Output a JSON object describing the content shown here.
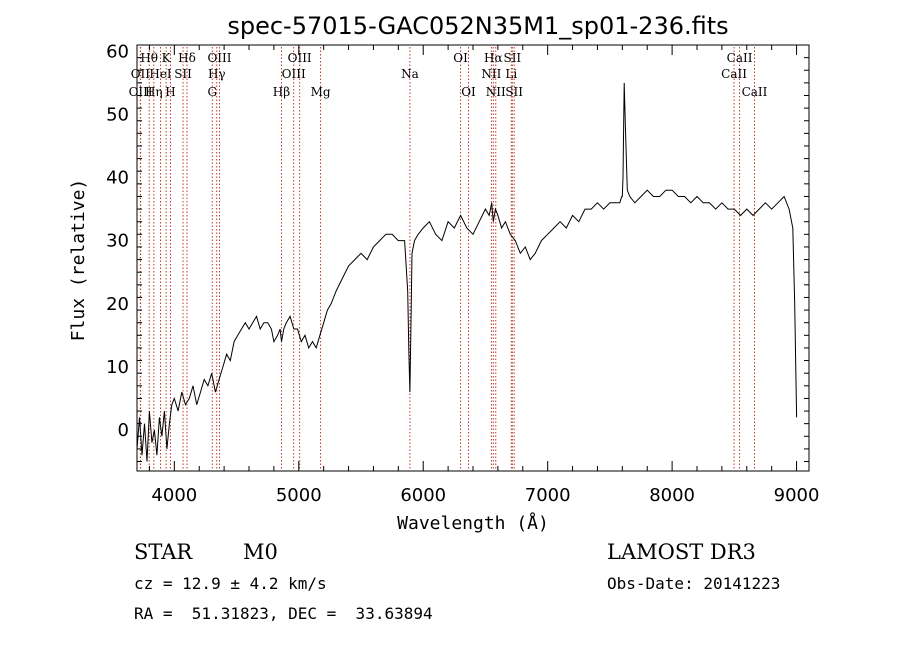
{
  "chart_data": {
    "type": "line",
    "title": "spec-57015-GAC052N35M1_sp01-236.fits",
    "xlabel": "Wavelength (Å)",
    "ylabel": "Flux (relative)",
    "xlim": [
      3700,
      9100
    ],
    "ylim": [
      -6.5,
      61
    ],
    "xticks": [
      4000,
      5000,
      6000,
      7000,
      8000,
      9000
    ],
    "yticks": [
      0,
      10,
      20,
      30,
      40,
      50,
      60
    ],
    "grid": false,
    "colors": {
      "spectrum": "#000000",
      "lines": "#c0392b"
    },
    "spectral_lines": [
      {
        "label": "Hθ",
        "x": 3798,
        "row": 1
      },
      {
        "label": "OII",
        "x": 3727,
        "row": 2
      },
      {
        "label": "OIII",
        "x": 3729,
        "row": 3
      },
      {
        "label": "Hη",
        "x": 3835,
        "row": 3
      },
      {
        "label": "HeI",
        "x": 3889,
        "row": 2
      },
      {
        "label": "K",
        "x": 3934,
        "row": 1
      },
      {
        "label": "H",
        "x": 3969,
        "row": 3
      },
      {
        "label": "SII",
        "x": 4070,
        "row": 2
      },
      {
        "label": "Hδ",
        "x": 4102,
        "row": 1
      },
      {
        "label": "OIII",
        "x": 4363,
        "row": 1
      },
      {
        "label": "Hγ",
        "x": 4341,
        "row": 2
      },
      {
        "label": "G",
        "x": 4305,
        "row": 3
      },
      {
        "label": "OIII",
        "x": 5007,
        "row": 1
      },
      {
        "label": "OIII",
        "x": 4959,
        "row": 2
      },
      {
        "label": "Hβ",
        "x": 4861,
        "row": 3
      },
      {
        "label": "Mg",
        "x": 5175,
        "row": 3
      },
      {
        "label": "Na",
        "x": 5893,
        "row": 2
      },
      {
        "label": "OI",
        "x": 6300,
        "row": 1
      },
      {
        "label": "OI",
        "x": 6364,
        "row": 3
      },
      {
        "label": "Hα",
        "x": 6563,
        "row": 1
      },
      {
        "label": "NII",
        "x": 6548,
        "row": 2
      },
      {
        "label": "NII",
        "x": 6583,
        "row": 3
      },
      {
        "label": "SII",
        "x": 6716,
        "row": 1
      },
      {
        "label": "Li",
        "x": 6708,
        "row": 2
      },
      {
        "label": "SII",
        "x": 6731,
        "row": 3
      },
      {
        "label": "CaII",
        "x": 8498,
        "row": 2
      },
      {
        "label": "CaII",
        "x": 8542,
        "row": 1
      },
      {
        "label": "CaII",
        "x": 8662,
        "row": 3
      }
    ],
    "series": [
      {
        "x": [
          3700,
          3720,
          3740,
          3760,
          3780,
          3800,
          3820,
          3840,
          3860,
          3880,
          3900,
          3920,
          3940,
          3960,
          3980,
          4000,
          4030,
          4060,
          4090,
          4120,
          4150,
          4180,
          4210,
          4240,
          4270,
          4300,
          4330,
          4360,
          4390,
          4420,
          4450,
          4480,
          4510,
          4540,
          4570,
          4600,
          4630,
          4660,
          4690,
          4720,
          4750,
          4780,
          4800,
          4830,
          4850,
          4861,
          4880,
          4900,
          4930,
          4960,
          4990,
          5020,
          5050,
          5080,
          5110,
          5140,
          5170,
          5200,
          5230,
          5260,
          5300,
          5350,
          5400,
          5450,
          5500,
          5550,
          5600,
          5650,
          5700,
          5750,
          5800,
          5850,
          5875,
          5885,
          5893,
          5900,
          5910,
          5930,
          5960,
          6000,
          6050,
          6100,
          6150,
          6200,
          6250,
          6300,
          6350,
          6400,
          6450,
          6500,
          6530,
          6550,
          6563,
          6580,
          6600,
          6630,
          6660,
          6700,
          6740,
          6780,
          6820,
          6860,
          6900,
          6950,
          7000,
          7050,
          7100,
          7150,
          7200,
          7250,
          7300,
          7350,
          7400,
          7450,
          7500,
          7550,
          7580,
          7595,
          7600,
          7605,
          7615,
          7625,
          7640,
          7660,
          7700,
          7750,
          7800,
          7850,
          7900,
          7950,
          8000,
          8050,
          8100,
          8150,
          8200,
          8250,
          8300,
          8350,
          8400,
          8450,
          8500,
          8550,
          8600,
          8650,
          8700,
          8750,
          8800,
          8850,
          8900,
          8940,
          8970,
          8985,
          9000
        ],
        "y": [
          -3,
          2,
          -4,
          1,
          -5,
          3,
          -2,
          0,
          -4,
          2,
          -1,
          3,
          -3,
          1,
          4,
          5,
          3,
          6,
          4,
          5,
          7,
          4,
          6,
          8,
          7,
          9,
          6,
          8,
          10,
          12,
          11,
          14,
          15,
          16,
          17,
          16,
          17,
          18,
          16,
          17,
          17,
          16,
          14,
          15,
          16,
          14,
          16,
          17,
          18,
          16,
          16,
          14,
          15,
          13,
          14,
          13,
          15,
          17,
          19,
          20,
          22,
          24,
          26,
          27,
          28,
          27,
          29,
          30,
          31,
          31,
          30,
          30,
          22,
          12,
          6,
          15,
          28,
          30,
          31,
          32,
          33,
          31,
          30,
          33,
          32,
          34,
          32,
          31,
          33,
          35,
          34,
          36,
          33,
          35,
          34,
          32,
          33,
          31,
          30,
          28,
          29,
          27,
          28,
          30,
          31,
          32,
          33,
          32,
          34,
          33,
          35,
          35,
          36,
          35,
          36,
          36,
          36,
          37,
          37,
          40,
          55,
          48,
          38,
          37,
          36,
          37,
          38,
          37,
          37,
          38,
          38,
          37,
          37,
          36,
          37,
          36,
          36,
          35,
          36,
          35,
          35,
          34,
          35,
          34,
          35,
          36,
          35,
          36,
          37,
          35,
          32,
          20,
          2
        ]
      }
    ]
  },
  "info": {
    "object_type": "STAR",
    "subclass": "M0",
    "survey": "LAMOST DR3",
    "redshift": "cz = 12.9 ± 4.2 km/s",
    "obs_date": "Obs-Date: 20141223",
    "coords": "RA =  51.31823, DEC =  33.63894"
  }
}
